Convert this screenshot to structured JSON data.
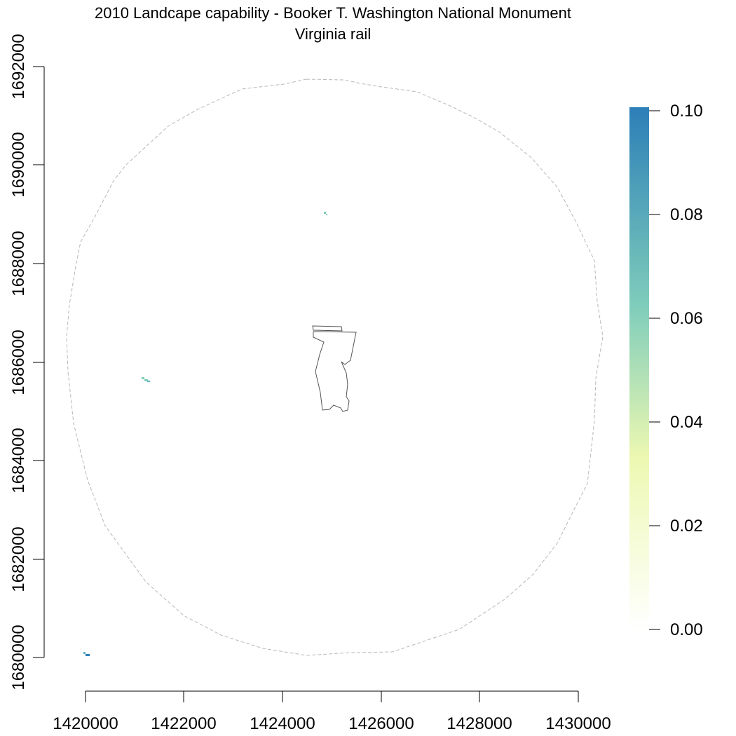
{
  "map": {
    "title": "2010 Landcape capability - Booker T. Washington National Monument",
    "subtitle": "Virginia rail",
    "x_ticks": [
      "1420000",
      "1422000",
      "1424000",
      "1426000",
      "1428000",
      "1430000"
    ],
    "y_ticks": [
      "1680000",
      "1682000",
      "1684000",
      "1686000",
      "1688000",
      "1690000",
      "1692000"
    ],
    "x_range": [
      1420000,
      1430000
    ],
    "y_range": [
      1680000,
      1692000
    ],
    "buffer_style": "dashed grey circle",
    "park_boundary": "solid grey outline",
    "habitat_patches": [
      {
        "x": 1424900,
        "y": 1689000,
        "value": 0.07
      },
      {
        "x": 1421250,
        "y": 1685600,
        "value": 0.07
      },
      {
        "x": 1420050,
        "y": 1680050,
        "value": 0.09
      }
    ]
  },
  "legend": {
    "labels": [
      "0.10",
      "0.08",
      "0.06",
      "0.04",
      "0.02",
      "0.00"
    ],
    "range": [
      0,
      0.1
    ],
    "colors": [
      "#ffffff",
      "#edf8b1",
      "#7fcdbb",
      "#2c7fb8"
    ]
  }
}
